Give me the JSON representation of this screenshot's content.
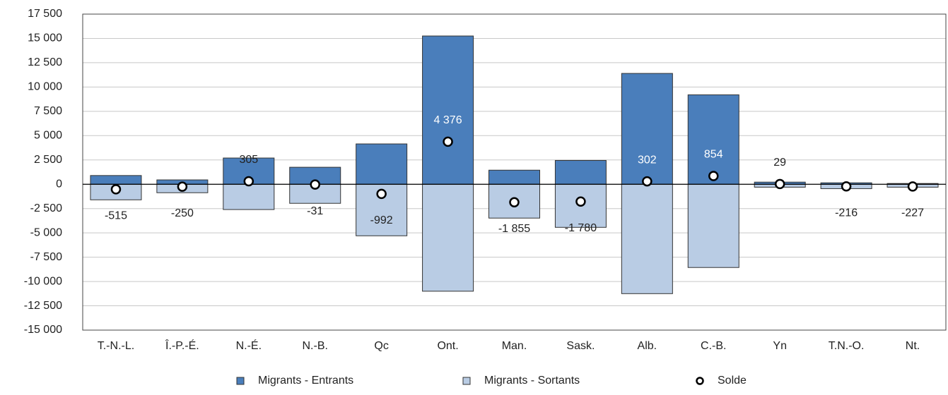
{
  "chart_data": {
    "type": "bar",
    "categories": [
      "T.-N.-L.",
      "Î.-P.-É.",
      "N.-É.",
      "N.-B.",
      "Qc",
      "Ont.",
      "Man.",
      "Sask.",
      "Alb.",
      "C.-B.",
      "Yn",
      "T.N.-O.",
      "Nt."
    ],
    "series": [
      {
        "name": "Migrants - Entrants",
        "type": "bar",
        "color": "#4a7ebb",
        "values": [
          900,
          450,
          2700,
          1750,
          4150,
          15250,
          1450,
          2450,
          11400,
          9200,
          220,
          150,
          80
        ]
      },
      {
        "name": "Migrants - Sortants",
        "type": "bar",
        "color": "#b9cce4",
        "values": [
          -1600,
          -870,
          -2600,
          -1960,
          -5300,
          -11000,
          -3480,
          -4430,
          -11250,
          -8560,
          -300,
          -450,
          -300
        ]
      },
      {
        "name": "Solde",
        "type": "scatter",
        "color": "#ffffff",
        "values": [
          -515,
          -250,
          305,
          -31,
          -992,
          4376,
          -1855,
          -1780,
          302,
          854,
          29,
          -216,
          -227
        ],
        "value_labels": [
          "-515",
          "-250",
          "305",
          "-31",
          "-992",
          "4 376",
          "-1 855",
          "-1 780",
          "302",
          "854",
          "29",
          "-216",
          "-227"
        ]
      }
    ],
    "ylim": [
      -15000,
      17500
    ],
    "yticks": [
      {
        "value": -15000,
        "label": "-15 000"
      },
      {
        "value": -12500,
        "label": "-12 500"
      },
      {
        "value": -10000,
        "label": "-10 000"
      },
      {
        "value": -7500,
        "label": "-7 500"
      },
      {
        "value": -5000,
        "label": "-5 000"
      },
      {
        "value": -2500,
        "label": "-2 500"
      },
      0,
      {
        "value": 2500,
        "label": "2 500"
      },
      {
        "value": 5000,
        "label": "5 000"
      },
      {
        "value": 7500,
        "label": "7 500"
      },
      {
        "value": 10000,
        "label": "10 000"
      },
      {
        "value": 12500,
        "label": "12 500"
      },
      {
        "value": 15000,
        "label": "15 000"
      },
      {
        "value": 17500,
        "label": "17 500"
      }
    ],
    "grid": true,
    "legend": "bottom"
  }
}
